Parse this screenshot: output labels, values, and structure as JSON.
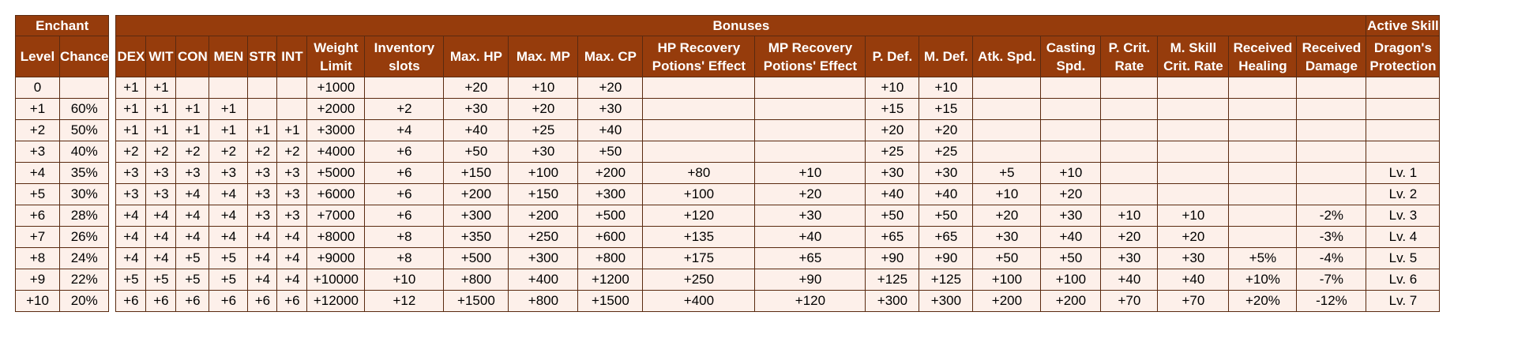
{
  "enchant": {
    "group_label": "Enchant",
    "columns": [
      "Level",
      "Chance"
    ],
    "rows": [
      [
        "0",
        ""
      ],
      [
        "+1",
        "60%"
      ],
      [
        "+2",
        "50%"
      ],
      [
        "+3",
        "40%"
      ],
      [
        "+4",
        "35%"
      ],
      [
        "+5",
        "30%"
      ],
      [
        "+6",
        "28%"
      ],
      [
        "+7",
        "26%"
      ],
      [
        "+8",
        "24%"
      ],
      [
        "+9",
        "22%"
      ],
      [
        "+10",
        "20%"
      ]
    ]
  },
  "bonuses": {
    "group_label": "Bonuses",
    "active_skill_label": "Active Skill",
    "columns": [
      "DEX",
      "WIT",
      "CON",
      "MEN",
      "STR",
      "INT",
      "Weight Limit",
      "Inventory slots",
      "Max. HP",
      "Max. MP",
      "Max. CP",
      "HP Recovery Potions' Effect",
      "MP Recovery Potions' Effect",
      "P. Def.",
      "M. Def.",
      "Atk. Spd.",
      "Casting Spd.",
      "P. Crit. Rate",
      "M. Skill Crit. Rate",
      "Received Healing",
      "Received Damage",
      "Dragon's Protection"
    ],
    "rows": [
      [
        "+1",
        "+1",
        "",
        "",
        "",
        "",
        "+1000",
        "",
        "+20",
        "+10",
        "+20",
        "",
        "",
        "+10",
        "+10",
        "",
        "",
        "",
        "",
        "",
        "",
        ""
      ],
      [
        "+1",
        "+1",
        "+1",
        "+1",
        "",
        "",
        "+2000",
        "+2",
        "+30",
        "+20",
        "+30",
        "",
        "",
        "+15",
        "+15",
        "",
        "",
        "",
        "",
        "",
        "",
        ""
      ],
      [
        "+1",
        "+1",
        "+1",
        "+1",
        "+1",
        "+1",
        "+3000",
        "+4",
        "+40",
        "+25",
        "+40",
        "",
        "",
        "+20",
        "+20",
        "",
        "",
        "",
        "",
        "",
        "",
        ""
      ],
      [
        "+2",
        "+2",
        "+2",
        "+2",
        "+2",
        "+2",
        "+4000",
        "+6",
        "+50",
        "+30",
        "+50",
        "",
        "",
        "+25",
        "+25",
        "",
        "",
        "",
        "",
        "",
        "",
        ""
      ],
      [
        "+3",
        "+3",
        "+3",
        "+3",
        "+3",
        "+3",
        "+5000",
        "+6",
        "+150",
        "+100",
        "+200",
        "+80",
        "+10",
        "+30",
        "+30",
        "+5",
        "+10",
        "",
        "",
        "",
        "",
        "Lv. 1"
      ],
      [
        "+3",
        "+3",
        "+4",
        "+4",
        "+3",
        "+3",
        "+6000",
        "+6",
        "+200",
        "+150",
        "+300",
        "+100",
        "+20",
        "+40",
        "+40",
        "+10",
        "+20",
        "",
        "",
        "",
        "",
        "Lv. 2"
      ],
      [
        "+4",
        "+4",
        "+4",
        "+4",
        "+3",
        "+3",
        "+7000",
        "+6",
        "+300",
        "+200",
        "+500",
        "+120",
        "+30",
        "+50",
        "+50",
        "+20",
        "+30",
        "+10",
        "+10",
        "",
        "-2%",
        "Lv. 3"
      ],
      [
        "+4",
        "+4",
        "+4",
        "+4",
        "+4",
        "+4",
        "+8000",
        "+8",
        "+350",
        "+250",
        "+600",
        "+135",
        "+40",
        "+65",
        "+65",
        "+30",
        "+40",
        "+20",
        "+20",
        "",
        "-3%",
        "Lv. 4"
      ],
      [
        "+4",
        "+4",
        "+5",
        "+5",
        "+4",
        "+4",
        "+9000",
        "+8",
        "+500",
        "+300",
        "+800",
        "+175",
        "+65",
        "+90",
        "+90",
        "+50",
        "+50",
        "+30",
        "+30",
        "+5%",
        "-4%",
        "Lv. 5"
      ],
      [
        "+5",
        "+5",
        "+5",
        "+5",
        "+4",
        "+4",
        "+10000",
        "+10",
        "+800",
        "+400",
        "+1200",
        "+250",
        "+90",
        "+125",
        "+125",
        "+100",
        "+100",
        "+40",
        "+40",
        "+10%",
        "-7%",
        "Lv. 6"
      ],
      [
        "+6",
        "+6",
        "+6",
        "+6",
        "+6",
        "+6",
        "+12000",
        "+12",
        "+1500",
        "+800",
        "+1500",
        "+400",
        "+120",
        "+300",
        "+300",
        "+200",
        "+200",
        "+70",
        "+70",
        "+20%",
        "-12%",
        "Lv. 7"
      ]
    ]
  },
  "colors": {
    "header_bg": "#963c0c",
    "header_text": "#ffffff",
    "cell_bg": "#fdf0ea",
    "border": "#5a2a10"
  }
}
